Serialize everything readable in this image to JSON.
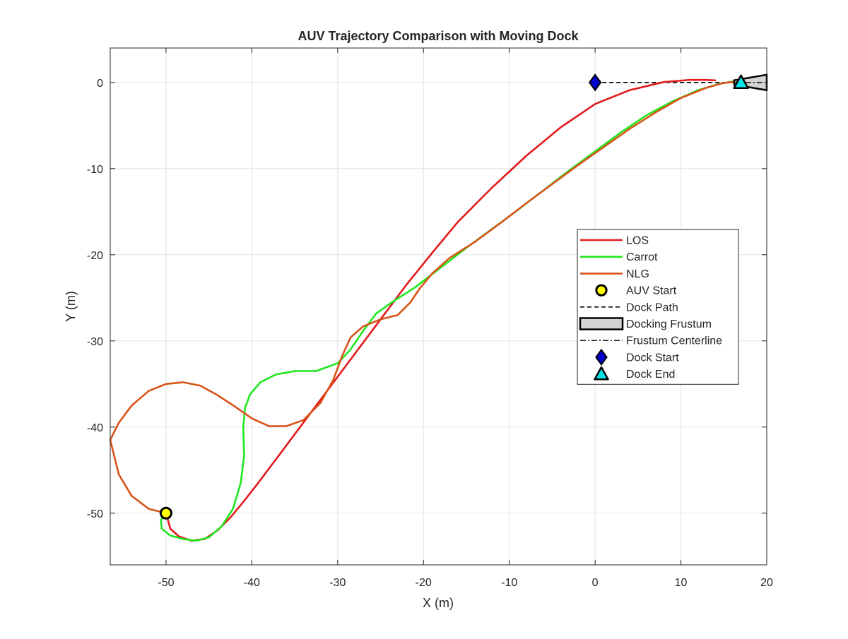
{
  "chart_data": {
    "type": "line",
    "title": "AUV Trajectory Comparison with Moving Dock",
    "xlabel": "X (m)",
    "ylabel": "Y (m)",
    "xlim": [
      -56.5,
      20
    ],
    "ylim": [
      -56,
      4
    ],
    "xticks": [
      -50,
      -40,
      -30,
      -20,
      -10,
      0,
      10,
      20
    ],
    "yticks": [
      -50,
      -40,
      -30,
      -20,
      -10,
      0
    ],
    "xtick_labels": [
      "-50",
      "-40",
      "-30",
      "-20",
      "-10",
      "0",
      "10",
      "20"
    ],
    "ytick_labels": [
      "-50",
      "-40",
      "-30",
      "-20",
      "-10",
      "0"
    ],
    "grid": true,
    "legend_position": "right-middle",
    "series": [
      {
        "name": "LOS",
        "kind": "line",
        "color": "#e31a1c",
        "x": [
          -50,
          -49.5,
          -48.5,
          -47,
          -45.5,
          -44,
          -42.5,
          -41,
          -39.5,
          -37,
          -34,
          -31,
          -28,
          -25,
          -22,
          -19,
          -16,
          -12,
          -8,
          -4,
          0,
          4,
          8,
          11,
          12.8,
          14
        ],
        "y": [
          -50,
          -51.8,
          -52.7,
          -53.2,
          -53,
          -52,
          -50.5,
          -48.7,
          -46.8,
          -43.5,
          -39.5,
          -35.5,
          -31.5,
          -27.5,
          -23.5,
          -19.8,
          -16.2,
          -12.2,
          -8.5,
          -5.2,
          -2.5,
          -0.9,
          0.05,
          0.3,
          0.3,
          0.25
        ]
      },
      {
        "name": "Carrot",
        "kind": "line",
        "color": "#1fe81f",
        "x": [
          -50,
          -50.6,
          -50.5,
          -49.5,
          -48,
          -46.5,
          -45,
          -43.5,
          -42.2,
          -41.3,
          -40.9,
          -41,
          -40.8,
          -40.2,
          -39,
          -37.2,
          -35,
          -32.5,
          -30,
          -28.5,
          -27,
          -25.5,
          -23.5,
          -21,
          -18,
          -15,
          -12,
          -9,
          -6,
          -3,
          0,
          3,
          6,
          9,
          12,
          14.5,
          16,
          17
        ],
        "y": [
          -50,
          -50.8,
          -51.8,
          -52.6,
          -53,
          -53.2,
          -52.8,
          -51.5,
          -49.5,
          -46.5,
          -43.3,
          -40,
          -37.8,
          -36.2,
          -34.8,
          -33.9,
          -33.5,
          -33.5,
          -32.6,
          -31,
          -28.8,
          -26.8,
          -25.4,
          -23.8,
          -21.5,
          -19.2,
          -17,
          -14.8,
          -12.5,
          -10.2,
          -8,
          -5.8,
          -3.8,
          -2.2,
          -0.9,
          -0.15,
          0.1,
          0
        ]
      },
      {
        "name": "NLG",
        "kind": "line",
        "color": "#d95319",
        "x": [
          -50,
          -52,
          -54,
          -55.5,
          -56.5,
          -56.5,
          -55.5,
          -54,
          -52,
          -50,
          -48,
          -46,
          -44,
          -42,
          -40,
          -38,
          -36,
          -34,
          -32,
          -30.5,
          -29.5,
          -28.5,
          -27,
          -25,
          -23,
          -21.5,
          -20.5,
          -19,
          -17,
          -14,
          -11,
          -8,
          -5,
          -2,
          1,
          4,
          7,
          10,
          13,
          15,
          16,
          17
        ],
        "y": [
          -50,
          -49.5,
          -48,
          -45.5,
          -41.5,
          -41.5,
          -39.5,
          -37.5,
          -35.8,
          -35,
          -34.8,
          -35.2,
          -36.3,
          -37.6,
          -39,
          -39.9,
          -39.9,
          -39.2,
          -37.2,
          -34.5,
          -31.8,
          -29.6,
          -28.3,
          -27.5,
          -27,
          -25.5,
          -24,
          -22.2,
          -20.4,
          -18.5,
          -16.3,
          -14,
          -11.8,
          -9.6,
          -7.5,
          -5.4,
          -3.5,
          -1.8,
          -0.6,
          -0.05,
          0.05,
          0
        ]
      }
    ],
    "markers": [
      {
        "name": "AUV Start",
        "shape": "circle",
        "x": -50,
        "y": -50,
        "fill": "#ffff00",
        "edge": "#000000"
      },
      {
        "name": "Dock Start",
        "shape": "diamond",
        "x": 0,
        "y": 0,
        "fill": "#0000cc",
        "edge": "#000000"
      },
      {
        "name": "Dock End",
        "shape": "triangle",
        "x": 17,
        "y": 0,
        "fill": "#00e5e5",
        "edge": "#000000"
      }
    ],
    "dock_path": {
      "name": "Dock Path",
      "x": [
        0,
        17
      ],
      "y": [
        0,
        0
      ],
      "color": "#000000",
      "style": "dashed"
    },
    "frustum": {
      "name": "Docking Frustum",
      "fill": "#d3d3d3",
      "edge": "#000000",
      "x": [
        16.2,
        20,
        20,
        16.2
      ],
      "y": [
        0.25,
        0.9,
        -0.9,
        -0.25
      ]
    },
    "frustum_centerline": {
      "name": "Frustum Centerline",
      "x": [
        16.2,
        20
      ],
      "y": [
        0,
        0
      ],
      "color": "#000000",
      "style": "dashdot"
    },
    "legend": [
      {
        "label": "LOS",
        "kind": "line",
        "color": "#e31a1c"
      },
      {
        "label": "Carrot",
        "kind": "line",
        "color": "#1fe81f"
      },
      {
        "label": "NLG",
        "kind": "line",
        "color": "#d95319"
      },
      {
        "label": "AUV Start",
        "kind": "circle",
        "color": "#ffff00"
      },
      {
        "label": "Dock Path",
        "kind": "dashed",
        "color": "#000000"
      },
      {
        "label": "Docking Frustum",
        "kind": "patch",
        "color": "#d3d3d3"
      },
      {
        "label": "Frustum Centerline",
        "kind": "dashdot",
        "color": "#000000"
      },
      {
        "label": "Dock Start",
        "kind": "diamond",
        "color": "#0000cc"
      },
      {
        "label": "Dock End",
        "kind": "triangle",
        "color": "#00e5e5"
      }
    ]
  }
}
